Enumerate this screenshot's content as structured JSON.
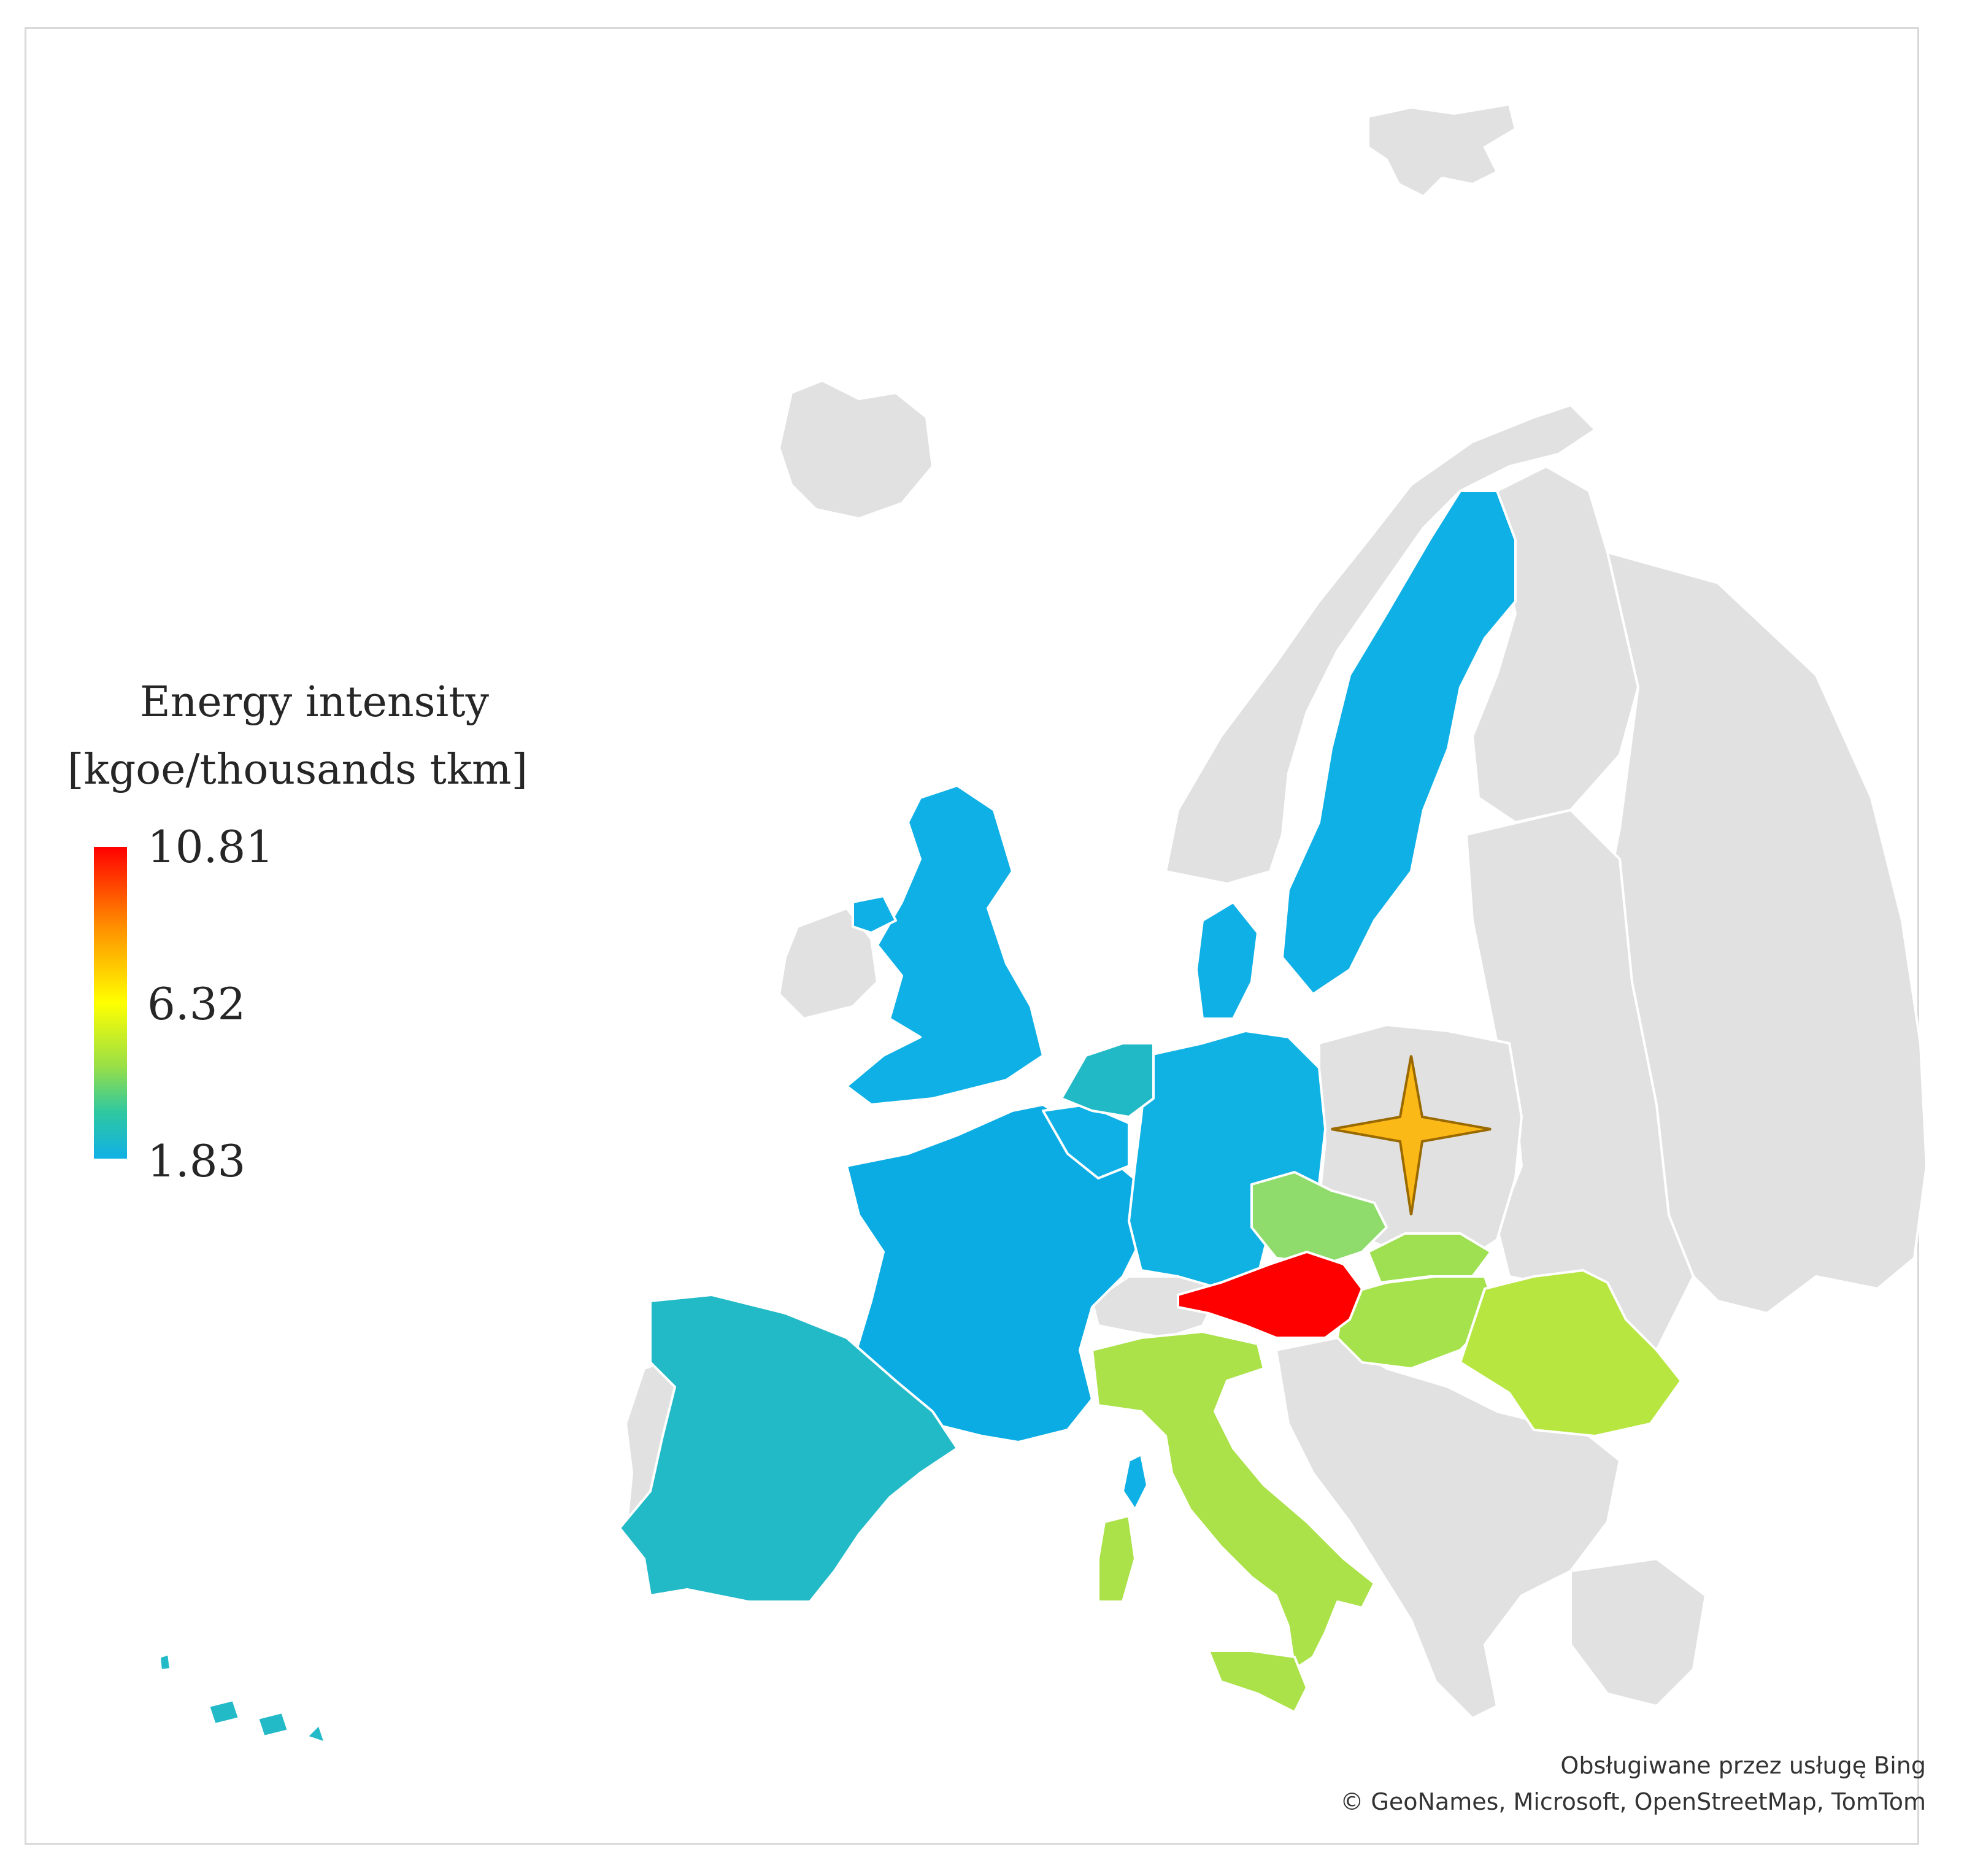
{
  "legend": {
    "title_line1": "Energy intensity",
    "title_line2": "[kgoe/thousands tkm]",
    "max_label": "10.81",
    "mid_label": "6.32",
    "min_label": "1.83",
    "scale_colors": [
      "#ff0000",
      "#ff8c00",
      "#ffff00",
      "#9be045",
      "#2fc8a0",
      "#10b0e6"
    ]
  },
  "attribution": {
    "line1": "Obsługiwane przez usługę Bing",
    "line2": "© GeoNames, Microsoft, OpenStreetMap, TomTom"
  },
  "colors": {
    "no_data": "#e1e1e1",
    "marker": "#fbb917"
  },
  "regions": [
    {
      "key": "sweden",
      "color": "#0fb0e5"
    },
    {
      "key": "uk",
      "color": "#0fb0e5"
    },
    {
      "key": "ireland_north",
      "color": "#0fb0e5"
    },
    {
      "key": "france",
      "color": "#0aace3"
    },
    {
      "key": "germany",
      "color": "#10b2e3"
    },
    {
      "key": "denmark",
      "color": "#0fb0e5"
    },
    {
      "key": "belgium",
      "color": "#0fb0e5"
    },
    {
      "key": "netherlands",
      "color": "#22b9c7"
    },
    {
      "key": "spain",
      "color": "#23bac8"
    },
    {
      "key": "canaries",
      "color": "#23bac8"
    },
    {
      "key": "corsica",
      "color": "#0fb0e5"
    },
    {
      "key": "czechia",
      "color": "#8fdc6c"
    },
    {
      "key": "slovakia",
      "color": "#9ee052"
    },
    {
      "key": "hungary",
      "color": "#a6e24c"
    },
    {
      "key": "austria",
      "color": "#ff0000"
    },
    {
      "key": "italy",
      "color": "#abe24a"
    },
    {
      "key": "sardinia",
      "color": "#abe24a"
    },
    {
      "key": "sicily",
      "color": "#abe24a"
    },
    {
      "key": "romania",
      "color": "#b8e641"
    }
  ]
}
